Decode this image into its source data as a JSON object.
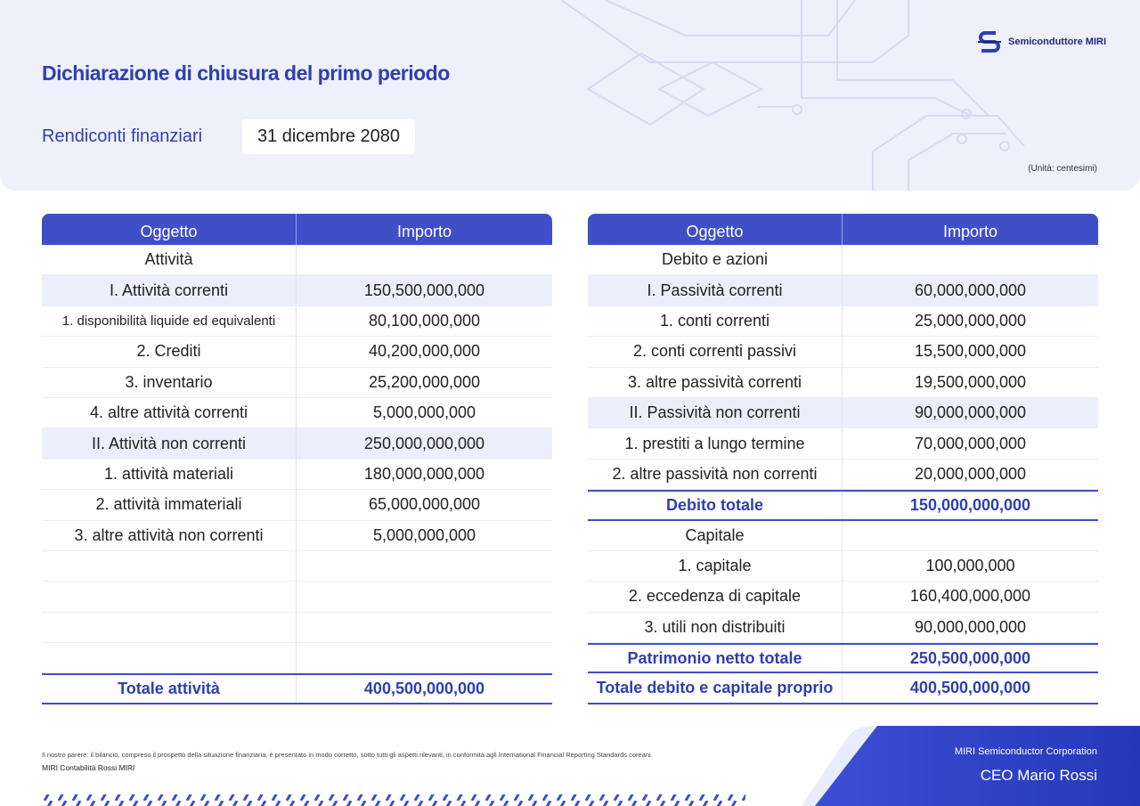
{
  "header": {
    "title": "Dichiarazione di chiusura del primo periodo",
    "subtitle": "Rendiconti finanziari",
    "date": "31 dicembre 2080",
    "unit": "(Unità: centesimi)",
    "logo": "Semiconduttore MIRI"
  },
  "tables": [
    {
      "columns": [
        "Oggetto",
        "Importo"
      ],
      "sections": [
        {
          "title": "Attività",
          "groups": [
            {
              "label": "I. Attività correnti",
              "amount": "150,500,000,000",
              "items": [
                {
                  "label": "1. disponibilità liquide ed equivalenti",
                  "amount": "80,100,000,000"
                },
                {
                  "label": "2. Crediti",
                  "amount": "40,200,000,000"
                },
                {
                  "label": "3. inventario",
                  "amount": "25,200,000,000"
                },
                {
                  "label": "4. altre attività correnti",
                  "amount": "5,000,000,000"
                }
              ]
            },
            {
              "label": "II. Attività non correnti",
              "amount": "250,000,000,000",
              "items": [
                {
                  "label": "1. attività materiali",
                  "amount": "180,000,000,000"
                },
                {
                  "label": "2. attività immateriali",
                  "amount": "65,000,000,000"
                },
                {
                  "label": "3. altre attività non correnti",
                  "amount": "5,000,000,000"
                }
              ]
            }
          ]
        }
      ],
      "total": {
        "label": "Totale attività",
        "amount": "400,500,000,000"
      }
    },
    {
      "columns": [
        "Oggetto",
        "Importo"
      ],
      "sections": [
        {
          "title": "Debito e azioni",
          "groups": [
            {
              "label": "I. Passività correnti",
              "amount": "60,000,000,000",
              "items": [
                {
                  "label": "1. conti correnti",
                  "amount": "25,000,000,000"
                },
                {
                  "label": "2. conti correnti passivi",
                  "amount": "15,500,000,000"
                },
                {
                  "label": "3. altre passività correnti",
                  "amount": "19,500,000,000"
                }
              ]
            },
            {
              "label": "II. Passività non correnti",
              "amount": "90,000,000,000",
              "items": [
                {
                  "label": "1. prestiti a lungo termine",
                  "amount": "70,000,000,000"
                },
                {
                  "label": "2. altre passività non correnti",
                  "amount": "20,000,000,000"
                }
              ]
            }
          ],
          "subtotal": {
            "label": "Debito totale",
            "amount": "150,000,000,000"
          }
        },
        {
          "title": "Capitale",
          "items": [
            {
              "label": "1. capitale",
              "amount": "100,000,000"
            },
            {
              "label": "2. eccedenza di capitale",
              "amount": "160,400,000,000"
            },
            {
              "label": "3. utili non distribuiti",
              "amount": "90,000,000,000"
            }
          ],
          "subtotal": {
            "label": "Patrimonio netto totale",
            "amount": "250,500,000,000"
          }
        }
      ],
      "total": {
        "label": "Totale debito e capitale proprio",
        "amount": "400,500,000,000"
      }
    }
  ],
  "footer": {
    "note": "Il nostro parere: il bilancio, compreso il prospetto della situazione finanziaria, è presentato in modo corretto, sotto tutti gli aspetti rilevanti, in conformità agli International Financial Reporting Standards coreani.",
    "auditor": "MIRI Contabilità Rossi MIRI",
    "company": "MIRI Semiconductor Corporation",
    "ceo": "CEO Mario Rossi"
  }
}
